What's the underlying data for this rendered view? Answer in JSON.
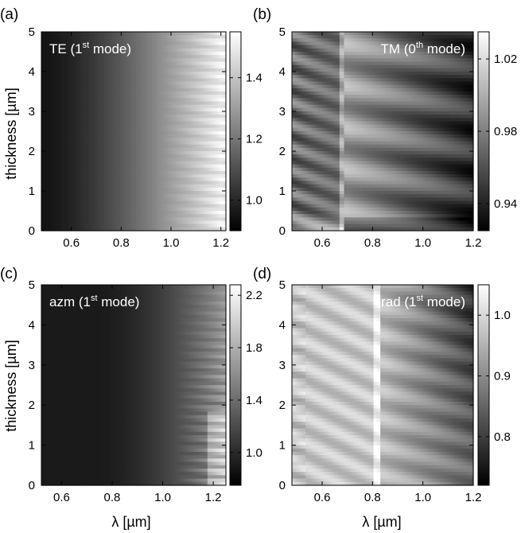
{
  "figure": {
    "ylabel": "thickness [µm]",
    "xlabel": "λ [µm]"
  },
  "chart_data": [
    {
      "type": "heatmap",
      "panel_label": "(a)",
      "inset_label": {
        "base": "TE (1",
        "sup": "st",
        "tail": " mode)"
      },
      "xlabel": "",
      "ylabel": "thickness [µm]",
      "xlim": [
        0.48,
        1.22
      ],
      "ylim": [
        0,
        5
      ],
      "x_ticks": [
        "0.6",
        "0.8",
        "1.0",
        "1.2"
      ],
      "x_tick_values": [
        0.6,
        0.8,
        1.0,
        1.2
      ],
      "y_ticks": [
        "0",
        "1",
        "2",
        "3",
        "4",
        "5"
      ],
      "y_tick_values": [
        0,
        1,
        2,
        3,
        4,
        5
      ],
      "colorbar": {
        "range": [
          0.9,
          1.55
        ],
        "ticks": [
          "1.0",
          "1.2",
          "1.4"
        ],
        "tick_values": [
          1.0,
          1.2,
          1.4
        ]
      },
      "pattern": "te",
      "colormap": "gray"
    },
    {
      "type": "heatmap",
      "panel_label": "(b)",
      "inset_label": {
        "base": "TM (0",
        "sup": "th",
        "tail": " mode)"
      },
      "xlabel": "",
      "ylabel": "",
      "xlim": [
        0.48,
        1.2
      ],
      "ylim": [
        0,
        5
      ],
      "x_ticks": [
        "0.6",
        "0.8",
        "1.0",
        "1.2"
      ],
      "x_tick_values": [
        0.6,
        0.8,
        1.0,
        1.2
      ],
      "y_ticks": [
        "0",
        "1",
        "2",
        "3",
        "4",
        "5"
      ],
      "y_tick_values": [
        0,
        1,
        2,
        3,
        4,
        5
      ],
      "colorbar": {
        "range": [
          0.925,
          1.035
        ],
        "ticks": [
          "0.94",
          "0.98",
          "1.02"
        ],
        "tick_values": [
          0.94,
          0.98,
          1.02
        ]
      },
      "pattern": "tm",
      "colormap": "gray"
    },
    {
      "type": "heatmap",
      "panel_label": "(c)",
      "inset_label": {
        "base": "azm (1",
        "sup": "st",
        "tail": " mode)"
      },
      "xlabel": "λ [µm]",
      "ylabel": "thickness [µm]",
      "xlim": [
        0.52,
        1.25
      ],
      "ylim": [
        0,
        5
      ],
      "x_ticks": [
        "0.6",
        "0.8",
        "1.0",
        "1.2"
      ],
      "x_tick_values": [
        0.6,
        0.8,
        1.0,
        1.2
      ],
      "y_ticks": [
        "0",
        "1",
        "2",
        "3",
        "4",
        "5"
      ],
      "y_tick_values": [
        0,
        1,
        2,
        3,
        4,
        5
      ],
      "colorbar": {
        "range": [
          0.75,
          2.28
        ],
        "ticks": [
          "1.0",
          "1.4",
          "1.8",
          "2.2"
        ],
        "tick_values": [
          1.0,
          1.4,
          1.8,
          2.2
        ]
      },
      "pattern": "azm",
      "colormap": "gray"
    },
    {
      "type": "heatmap",
      "panel_label": "(d)",
      "inset_label": {
        "base": "rad (1",
        "sup": "st",
        "tail": " mode)"
      },
      "xlabel": "λ [µm]",
      "ylabel": "",
      "xlim": [
        0.48,
        1.2
      ],
      "ylim": [
        0,
        5
      ],
      "x_ticks": [
        "0.6",
        "0.8",
        "1.0",
        "1.2"
      ],
      "x_tick_values": [
        0.6,
        0.8,
        1.0,
        1.2
      ],
      "y_ticks": [
        "0",
        "1",
        "2",
        "3",
        "4",
        "5"
      ],
      "y_tick_values": [
        0,
        1,
        2,
        3,
        4,
        5
      ],
      "colorbar": {
        "range": [
          0.72,
          1.05
        ],
        "ticks": [
          "0.8",
          "0.9",
          "1.0"
        ],
        "tick_values": [
          0.8,
          0.9,
          1.0
        ]
      },
      "pattern": "rad",
      "colormap": "gray"
    }
  ]
}
